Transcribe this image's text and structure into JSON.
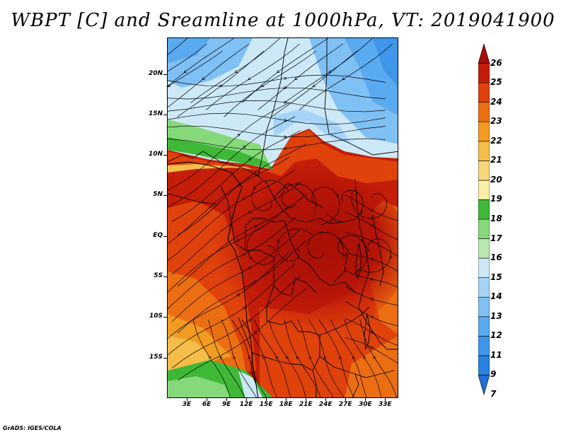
{
  "title": "WBPT [C] and Sreamline at 1000hPa, VT: 2019041900",
  "credit": "GrADS: IGES/COLA",
  "map": {
    "lat_range": [
      -20,
      24.5
    ],
    "lon_range": [
      0,
      35
    ],
    "y_ticks": [
      {
        "label": "20N",
        "lat": 20
      },
      {
        "label": "15N",
        "lat": 15
      },
      {
        "label": "10N",
        "lat": 10
      },
      {
        "label": "5N",
        "lat": 5
      },
      {
        "label": "EQ",
        "lat": 0
      },
      {
        "label": "5S",
        "lat": -5
      },
      {
        "label": "10S",
        "lat": -10
      },
      {
        "label": "15S",
        "lat": -15
      }
    ],
    "x_ticks": [
      {
        "label": "3E",
        "lon": 3
      },
      {
        "label": "6E",
        "lon": 6
      },
      {
        "label": "9E",
        "lon": 9
      },
      {
        "label": "12E",
        "lon": 12
      },
      {
        "label": "15E",
        "lon": 15
      },
      {
        "label": "18E",
        "lon": 18
      },
      {
        "label": "21E",
        "lon": 21
      },
      {
        "label": "24E",
        "lon": 24
      },
      {
        "label": "27E",
        "lon": 27
      },
      {
        "label": "30E",
        "lon": 30
      },
      {
        "label": "33E",
        "lon": 33
      }
    ]
  },
  "colorbar": {
    "levels": [
      "7",
      "9",
      "11",
      "12",
      "13",
      "14",
      "15",
      "16",
      "17",
      "18",
      "19",
      "20",
      "21",
      "22",
      "23",
      "24",
      "25",
      "26"
    ],
    "colors": [
      "#1e6fd9",
      "#2a82e0",
      "#3f96ea",
      "#5aaaf0",
      "#7fc0f5",
      "#a5d4f8",
      "#cde9f7",
      "#b8e8b0",
      "#86d97a",
      "#3fb837",
      "#f9f0a8",
      "#f8d77c",
      "#f5bd4a",
      "#f29b22",
      "#ec6e12",
      "#e0420c",
      "#c41d08",
      "#a60f06"
    ]
  }
}
